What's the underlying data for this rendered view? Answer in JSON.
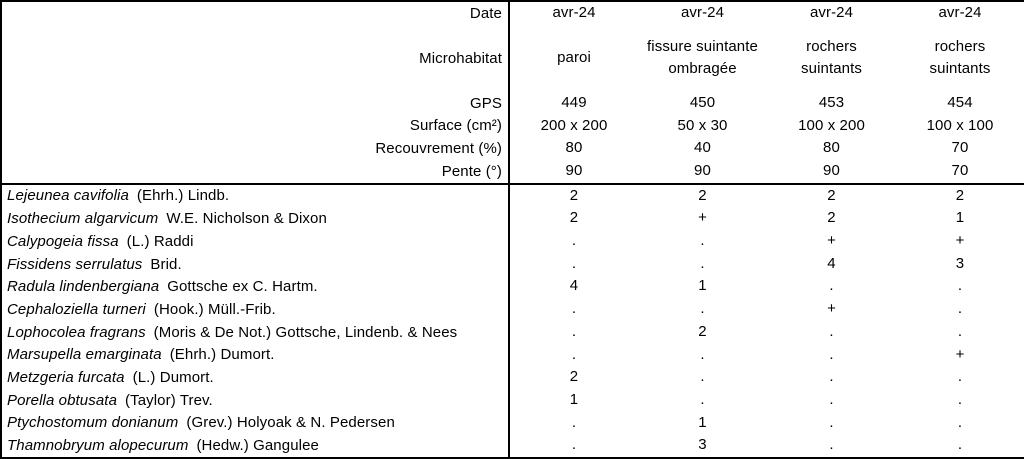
{
  "table": {
    "header_rows": [
      {
        "label": "Date",
        "values": [
          "avr-24",
          "avr-24",
          "avr-24",
          "avr-24"
        ]
      },
      {
        "label": "Microhabitat",
        "values": [
          "paroi",
          "fissure suintante\nombragée",
          "rochers\nsuintants",
          "rochers\nsuintants"
        ]
      },
      {
        "label": "GPS",
        "values": [
          "449",
          "450",
          "453",
          "454"
        ]
      },
      {
        "label": "Surface (cm²)",
        "values": [
          "200 x 200",
          "50 x 30",
          "100 x 200",
          "100 x 100"
        ]
      },
      {
        "label": "Recouvrement (%)",
        "values": [
          "80",
          "40",
          "80",
          "70"
        ]
      },
      {
        "label": "Pente (°)",
        "values": [
          "90",
          "90",
          "90",
          "70"
        ]
      }
    ],
    "species_rows": [
      {
        "taxon": "Lejeunea cavifolia",
        "authority": "(Ehrh.) Lindb.",
        "values": [
          "2",
          "2",
          "2",
          "2"
        ]
      },
      {
        "taxon": "Isothecium algarvicum",
        "authority": "W.E. Nicholson & Dixon",
        "values": [
          "2",
          "+",
          "2",
          "1"
        ]
      },
      {
        "taxon": "Calypogeia fissa",
        "authority": "(L.) Raddi",
        "values": [
          ".",
          ".",
          "+",
          "+"
        ]
      },
      {
        "taxon": "Fissidens serrulatus",
        "authority": "Brid.",
        "values": [
          ".",
          ".",
          "4",
          "3"
        ]
      },
      {
        "taxon": "Radula lindenbergiana",
        "authority": "Gottsche ex C. Hartm.",
        "values": [
          "4",
          "1",
          ".",
          "."
        ]
      },
      {
        "taxon": "Cephaloziella turneri",
        "authority": "(Hook.) Müll.-Frib.",
        "values": [
          ".",
          ".",
          "+",
          "."
        ]
      },
      {
        "taxon": "Lophocolea fragrans",
        "authority": "(Moris & De Not.) Gottsche, Lindenb. & Nees",
        "values": [
          ".",
          "2",
          ".",
          "."
        ]
      },
      {
        "taxon": "Marsupella emarginata",
        "authority": "(Ehrh.) Dumort.",
        "values": [
          ".",
          ".",
          ".",
          "+"
        ]
      },
      {
        "taxon": "Metzgeria furcata",
        "authority": "(L.) Dumort.",
        "values": [
          "2",
          ".",
          ".",
          "."
        ]
      },
      {
        "taxon": "Porella obtusata",
        "authority": "(Taylor) Trev.",
        "values": [
          "1",
          ".",
          ".",
          "."
        ]
      },
      {
        "taxon": "Ptychostomum donianum",
        "authority": "(Grev.) Holyoak & N. Pedersen",
        "values": [
          ".",
          "1",
          ".",
          "."
        ]
      },
      {
        "taxon": "Thamnobryum alopecurum",
        "authority": "(Hedw.) Gangulee",
        "values": [
          ".",
          "3",
          ".",
          "."
        ]
      }
    ],
    "colors": {
      "border": "#000000",
      "text": "#000000",
      "background": "#ffffff"
    }
  }
}
